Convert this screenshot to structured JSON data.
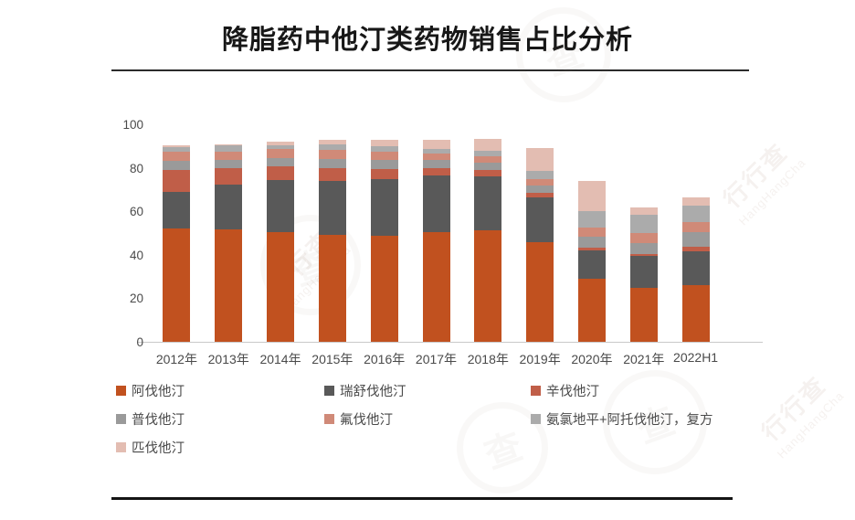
{
  "title": "降脂药中他汀类药物销售占比分析",
  "watermark": {
    "cn": "行行查",
    "en": "HangHangCha"
  },
  "chart_data": {
    "type": "bar",
    "stacked": true,
    "title": "降脂药中他汀类药物销售占比分析",
    "xlabel": "",
    "ylabel": "",
    "ylim": [
      0,
      100
    ],
    "yticks": [
      0,
      20,
      40,
      60,
      80,
      100
    ],
    "grid": false,
    "legend_position": "bottom",
    "categories": [
      "2012年",
      "2013年",
      "2014年",
      "2015年",
      "2016年",
      "2017年",
      "2018年",
      "2019年",
      "2020年",
      "2021年",
      "2022H1"
    ],
    "series": [
      {
        "name": "阿伐他汀",
        "color": "#C1511F",
        "values": [
          52,
          51.8,
          50.5,
          49.3,
          48.8,
          50.5,
          51.4,
          45.8,
          29,
          25,
          26
        ]
      },
      {
        "name": "瑞舒伐他汀",
        "color": "#595959",
        "values": [
          17,
          20.6,
          24,
          24.8,
          26.2,
          26.1,
          24.6,
          20.7,
          13,
          14.5,
          15.5
        ]
      },
      {
        "name": "辛伐他汀",
        "color": "#C05E48",
        "values": [
          10,
          7.6,
          6.3,
          5.9,
          4.5,
          3.4,
          3,
          2,
          1.5,
          1,
          2
        ]
      },
      {
        "name": "普伐他汀",
        "color": "#9A9A9A",
        "values": [
          4.3,
          3.5,
          3.7,
          4,
          4,
          3.5,
          3.5,
          3.5,
          5,
          5,
          7
        ]
      },
      {
        "name": "氟伐他汀",
        "color": "#D08A78",
        "values": [
          4,
          4,
          4,
          4.5,
          4,
          3,
          3,
          3,
          4,
          4.5,
          4.5
        ]
      },
      {
        "name": "氨氯地平+阿托伐他汀，复方",
        "color": "#ABABAB",
        "values": [
          2.4,
          3,
          2,
          2.5,
          2.5,
          2,
          2.5,
          3.5,
          7.5,
          8.5,
          7.5
        ]
      },
      {
        "name": "匹伐他汀",
        "color": "#E3BDB2",
        "values": [
          0.5,
          0.5,
          1.5,
          2,
          3,
          4.5,
          5.5,
          10.5,
          14,
          3.5,
          4
        ]
      }
    ]
  }
}
